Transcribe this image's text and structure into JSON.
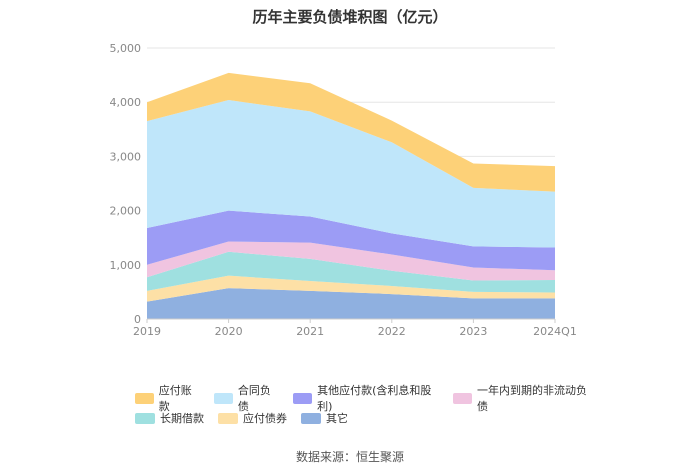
{
  "title": "历年主要负债堆积图（亿元）",
  "source": "数据来源：恒生聚源",
  "chart_data": {
    "type": "area",
    "stacked": true,
    "x": [
      "2019",
      "2020",
      "2021",
      "2022",
      "2023",
      "2024Q1"
    ],
    "ylim": [
      0,
      5000
    ],
    "yticks": [
      "0",
      "1,000",
      "2,000",
      "3,000",
      "4,000",
      "5,000"
    ],
    "grid": true,
    "legend_position": "bottom",
    "series": [
      {
        "name": "其它",
        "color": "#8fb0e0",
        "values": [
          320,
          570,
          520,
          460,
          380,
          380
        ]
      },
      {
        "name": "应付债券",
        "color": "#fde0a6",
        "values": [
          200,
          230,
          180,
          150,
          120,
          110
        ]
      },
      {
        "name": "长期借款",
        "color": "#9fe0e0",
        "values": [
          250,
          440,
          410,
          280,
          210,
          230
        ]
      },
      {
        "name": "一年内到期的非流动负债",
        "color": "#f0c4e0",
        "values": [
          230,
          190,
          300,
          300,
          240,
          180
        ]
      },
      {
        "name": "其他应付款(含利息和股利)",
        "color": "#9c9cf5",
        "values": [
          680,
          570,
          480,
          390,
          390,
          420
        ]
      },
      {
        "name": "合同负债",
        "color": "#bfe6fa",
        "values": [
          1970,
          2040,
          1940,
          1680,
          1080,
          1030
        ]
      },
      {
        "name": "应付账款",
        "color": "#fdd178",
        "values": [
          350,
          500,
          520,
          400,
          450,
          470
        ]
      }
    ]
  },
  "legend_rows": [
    [
      {
        "label": "应付账款",
        "color": "#fdd178"
      },
      {
        "label": "合同负债",
        "color": "#bfe6fa"
      },
      {
        "label": "其他应付款(含利息和股利)",
        "color": "#9c9cf5"
      },
      {
        "label": "一年内到期的非流动负债",
        "color": "#f0c4e0"
      }
    ],
    [
      {
        "label": "长期借款",
        "color": "#9fe0e0"
      },
      {
        "label": "应付债券",
        "color": "#fde0a6"
      },
      {
        "label": "其它",
        "color": "#8fb0e0"
      }
    ]
  ]
}
